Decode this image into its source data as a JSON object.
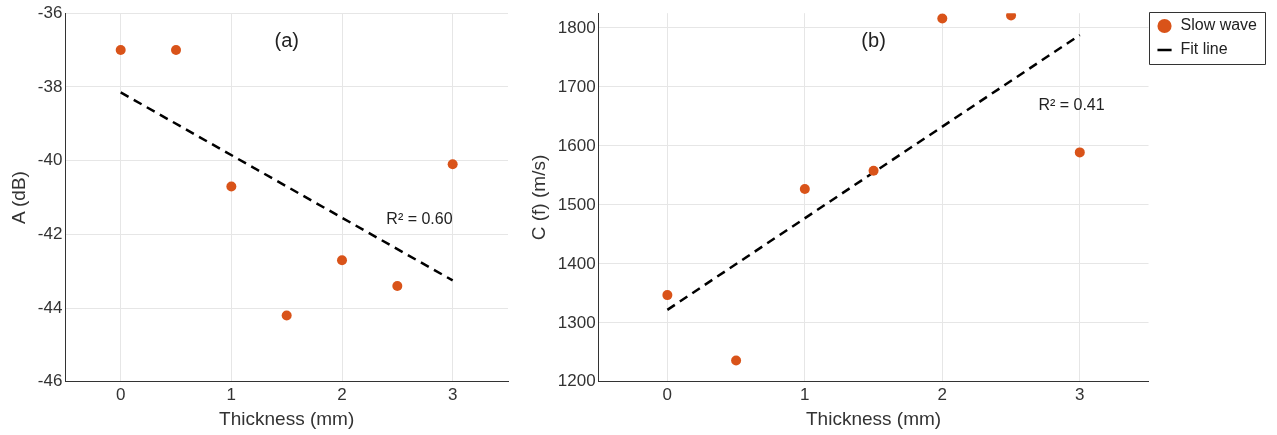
{
  "chart_data": [
    {
      "type": "scatter",
      "title": "(a)",
      "xlabel": "Thickness (mm)",
      "ylabel": "A (dB)",
      "xlim": [
        -0.5,
        3.5
      ],
      "xticks": [
        0,
        1,
        2,
        3
      ],
      "ylim": [
        -46,
        -36
      ],
      "yticks": [
        -46,
        -44,
        -42,
        -40,
        -38,
        -36
      ],
      "grid": true,
      "legend": false,
      "marker": "circle",
      "series": [
        {
          "type": "scatter",
          "color": "#d95319",
          "x": [
            0,
            0.5,
            1,
            1.5,
            2,
            2.5,
            3
          ],
          "values": [
            -37,
            -37,
            -40.7,
            -44.2,
            -42.7,
            -43.4,
            -40.1
          ]
        },
        {
          "type": "line",
          "color": "#000000",
          "x": [
            0,
            3
          ],
          "values": [
            -38.15,
            -43.25
          ],
          "marker": "none",
          "line_style": "dashed"
        }
      ],
      "annotations": [
        "R² = 0.60"
      ]
    },
    {
      "type": "scatter",
      "title": "(b)",
      "xlabel": "Thickness (mm)",
      "ylabel": "C (f) (m/s)",
      "xlim": [
        -0.5,
        3.5
      ],
      "xticks": [
        0,
        1,
        2,
        3
      ],
      "ylim": [
        1200,
        1825
      ],
      "yticks": [
        1200,
        1300,
        1400,
        1500,
        1600,
        1700,
        1800
      ],
      "grid": true,
      "legend": "top right",
      "marker": "circle",
      "series": [
        {
          "type": "scatter",
          "name": "Slow wave",
          "color": "#d95319",
          "x": [
            0,
            0.5,
            1,
            1.5,
            2,
            2.5,
            3
          ],
          "values": [
            1347,
            1236,
            1527,
            1558,
            1816,
            1821,
            1589
          ]
        },
        {
          "type": "line",
          "name": "Fit line",
          "color": "#000000",
          "x": [
            0,
            3
          ],
          "values": [
            1322,
            1788
          ],
          "marker": "none",
          "line_style": "dashed"
        }
      ],
      "annotations": [
        "R² = 0.41"
      ]
    }
  ]
}
